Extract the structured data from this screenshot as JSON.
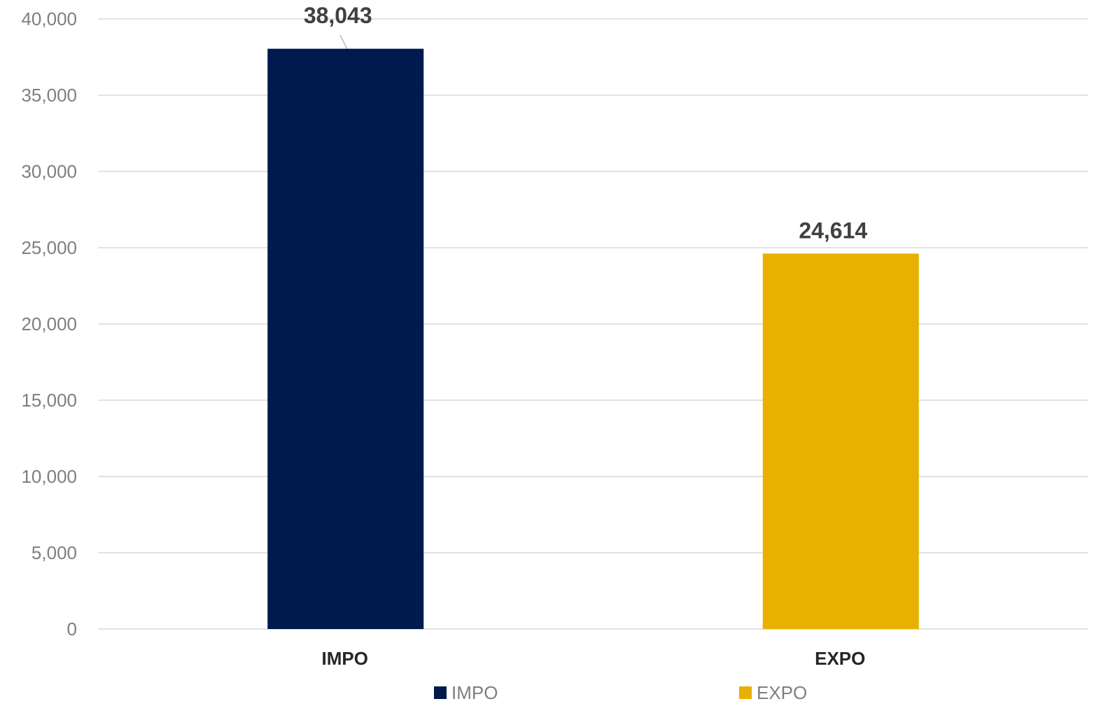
{
  "chart_data": {
    "type": "bar",
    "categories": [
      "IMPO",
      "EXPO"
    ],
    "values": [
      38043,
      24614
    ],
    "data_labels": [
      "38,043",
      "24,614"
    ],
    "colors": [
      "#001a4d",
      "#e8b000"
    ],
    "ylim": [
      0,
      40000
    ],
    "yticks": [
      0,
      5000,
      10000,
      15000,
      20000,
      25000,
      30000,
      35000,
      40000
    ],
    "ytick_labels": [
      "0",
      "5,000",
      "10,000",
      "15,000",
      "20,000",
      "25,000",
      "30,000",
      "35,000",
      "40,000"
    ],
    "grid": true,
    "legend": {
      "placement": "bottom",
      "entries": [
        {
          "label": "IMPO",
          "color": "#001a4d"
        },
        {
          "label": "EXPO",
          "color": "#e8b000"
        }
      ]
    },
    "gridline_color": "#d9d9d9"
  }
}
